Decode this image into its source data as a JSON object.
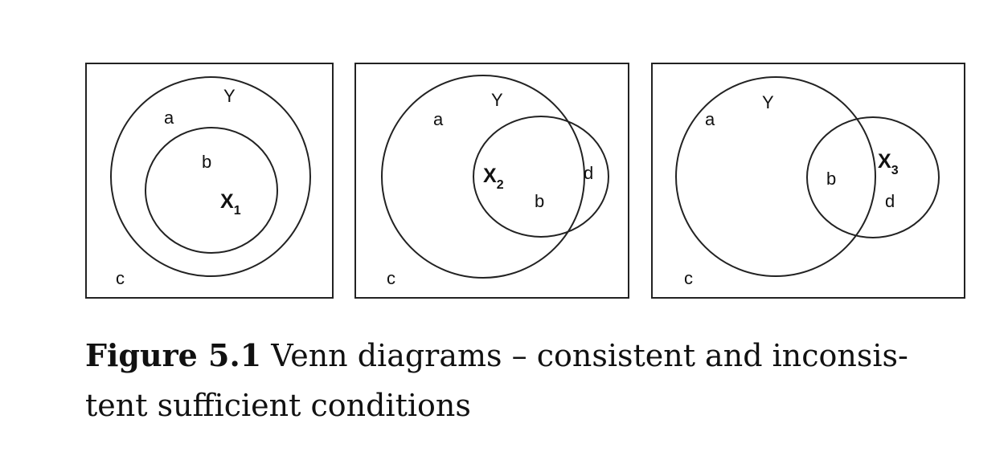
{
  "panels": [
    {
      "Y": "Y",
      "a": "a",
      "b": "b",
      "c": "c",
      "X": "X",
      "X_sub": "1"
    },
    {
      "Y": "Y",
      "a": "a",
      "b": "b",
      "c": "c",
      "d": "d",
      "X": "X",
      "X_sub": "2"
    },
    {
      "Y": "Y",
      "a": "a",
      "b": "b",
      "c": "c",
      "d": "d",
      "X": "X",
      "X_sub": "3"
    }
  ],
  "caption": {
    "figure_label": "Figure 5.1",
    "text_line1": "Venn diagrams – consistent and inconsis-",
    "text_line2": "tent sufficient conditions"
  }
}
